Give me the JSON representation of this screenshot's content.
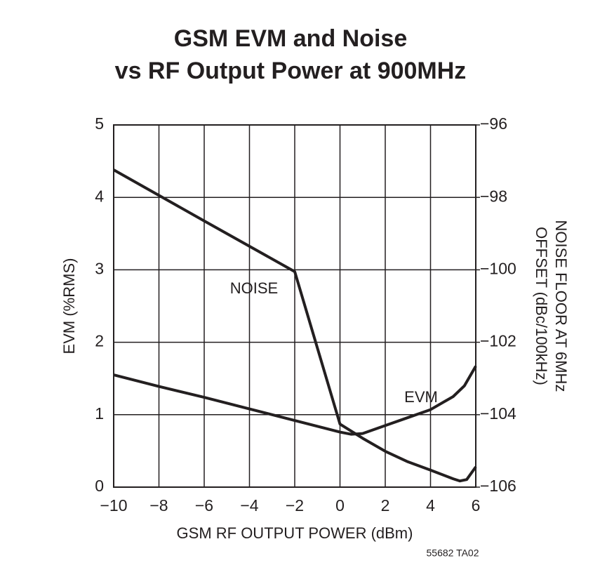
{
  "chart_data": {
    "type": "line",
    "title": "GSM EVM and Noise",
    "subtitle": "vs RF Output Power at 900MHz",
    "x_label": "GSM RF OUTPUT POWER (dBm)",
    "y_label": "EVM (%RMS)",
    "y2_label": [
      "NOISE FLOOR AT 6MHz",
      "OFFSET (dBc/100kHz)"
    ],
    "footnote": "55682 TA02",
    "xlim": [
      -10,
      6
    ],
    "xticks": [
      {
        "value": -10,
        "label": "−10"
      },
      {
        "value": -8,
        "label": "−8"
      },
      {
        "value": -6,
        "label": "−6"
      },
      {
        "value": -4,
        "label": "−4"
      },
      {
        "value": -2,
        "label": "−2"
      },
      0,
      2,
      4,
      6
    ],
    "ylim": [
      0,
      5
    ],
    "yticks": [
      0,
      1,
      2,
      3,
      4,
      5
    ],
    "y2lim": [
      -106,
      -96
    ],
    "y2ticks": [
      {
        "value": -106,
        "label": "−106"
      },
      {
        "value": -104,
        "label": "−104"
      },
      {
        "value": -102,
        "label": "−102"
      },
      {
        "value": -100,
        "label": "−100"
      },
      {
        "value": -98,
        "label": "−98"
      },
      {
        "value": -96,
        "label": "−96"
      }
    ],
    "grid": true,
    "series": [
      {
        "name": "EVM",
        "color": "#231f20",
        "x": [
          -10,
          -8,
          -6,
          -4,
          -2,
          0,
          0.5,
          1,
          2,
          3,
          4,
          5,
          5.5,
          6
        ],
        "values": [
          1.55,
          1.39,
          1.24,
          1.08,
          0.92,
          0.76,
          0.73,
          0.74,
          0.85,
          0.96,
          1.07,
          1.25,
          1.4,
          1.67
        ]
      },
      {
        "name": "NOISE",
        "color": "#231f20",
        "axis": "y2",
        "x": [
          -10,
          -6,
          -2,
          0,
          1,
          2,
          3,
          4,
          5,
          5.3,
          5.6,
          6
        ],
        "values": [
          -97.24,
          -98.65,
          -100.05,
          -104.26,
          -104.65,
          -105.01,
          -105.3,
          -105.53,
          -105.77,
          -105.83,
          -105.79,
          -105.44
        ]
      }
    ]
  }
}
